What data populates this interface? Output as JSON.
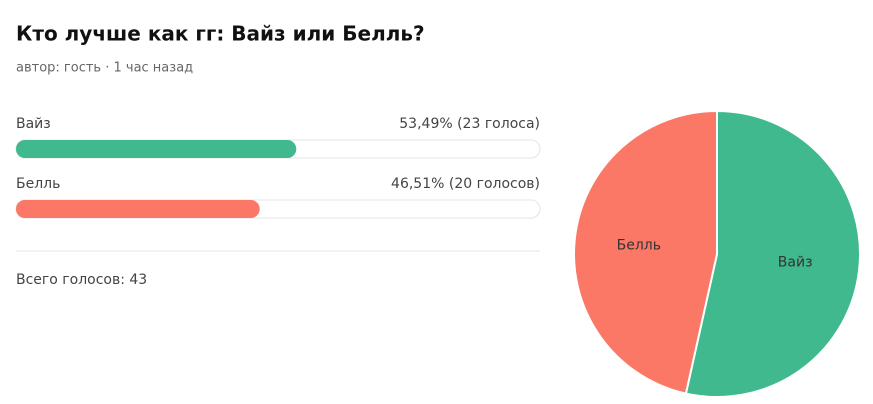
{
  "header": {
    "title": "Кто лучше как гг: Вайз или Белль?",
    "meta": "автор: гость · 1 час назад"
  },
  "chart_data": {
    "type": "pie",
    "categories": [
      "Вайз",
      "Белль"
    ],
    "values": [
      53.49,
      46.51
    ],
    "value_labels": [
      "53,49% (23 голоса)",
      "46,51% (20 голосов)"
    ],
    "colors": [
      "#40b98e",
      "#fb7766"
    ],
    "xlim": [
      0,
      100
    ]
  },
  "footer": {
    "total": "Всего голосов: 43"
  }
}
